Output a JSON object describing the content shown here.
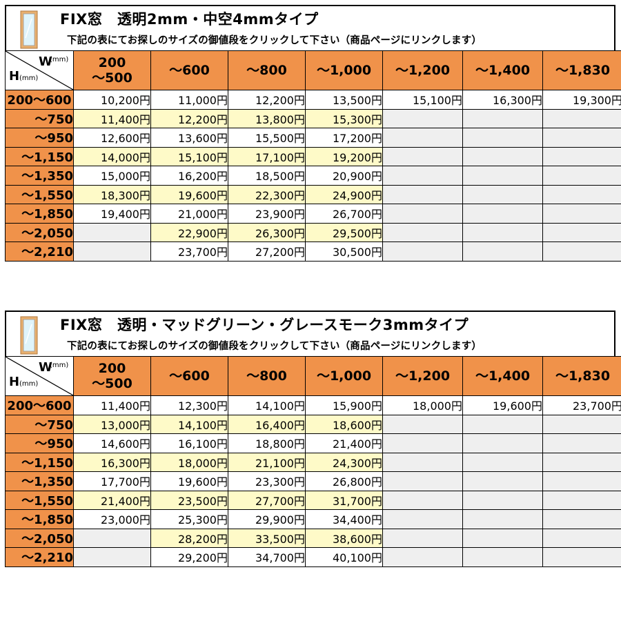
{
  "tables": [
    {
      "title": "FIX窓　透明2mm・中空4mmタイプ",
      "subtitle": "下記の表にてお探しのサイズの御値段をクリックして下さい（商品ページにリンクします）",
      "corner": {
        "w": "W",
        "w_unit": "(mm)",
        "h": "H",
        "h_unit": "(mm)"
      },
      "width_headers": [
        "200\n～500",
        "～600",
        "～800",
        "～1,000",
        "～1,200",
        "～1,400",
        "～1,830"
      ],
      "height_headers": [
        "200～600",
        "～750",
        "～950",
        "～1,150",
        "～1,350",
        "～1,550",
        "～1,850",
        "～2,050",
        "～2,210"
      ],
      "prices": [
        [
          "10,200円",
          "11,000円",
          "12,200円",
          "13,500円",
          "15,100円",
          "16,300円",
          "19,300円"
        ],
        [
          "11,400円",
          "12,200円",
          "13,800円",
          "15,300円",
          "",
          "",
          ""
        ],
        [
          "12,600円",
          "13,600円",
          "15,500円",
          "17,200円",
          "",
          "",
          ""
        ],
        [
          "14,000円",
          "15,100円",
          "17,100円",
          "19,200円",
          "",
          "",
          ""
        ],
        [
          "15,000円",
          "16,200円",
          "18,500円",
          "20,900円",
          "",
          "",
          ""
        ],
        [
          "18,300円",
          "19,600円",
          "22,300円",
          "24,900円",
          "",
          "",
          ""
        ],
        [
          "19,400円",
          "21,000円",
          "23,900円",
          "26,700円",
          "",
          "",
          ""
        ],
        [
          "",
          "22,900円",
          "26,300円",
          "29,500円",
          "",
          "",
          ""
        ],
        [
          "",
          "23,700円",
          "27,200円",
          "30,500円",
          "",
          "",
          ""
        ]
      ]
    },
    {
      "title": "FIX窓　透明・マッドグリーン・グレースモーク3mmタイプ",
      "subtitle": "下記の表にてお探しのサイズの御値段をクリックして下さい（商品ページにリンクします）",
      "corner": {
        "w": "W",
        "w_unit": "(mm)",
        "h": "H",
        "h_unit": "(mm)"
      },
      "width_headers": [
        "200\n～500",
        "～600",
        "～800",
        "～1,000",
        "～1,200",
        "～1,400",
        "～1,830"
      ],
      "height_headers": [
        "200～600",
        "～750",
        "～950",
        "～1,150",
        "～1,350",
        "～1,550",
        "～1,850",
        "～2,050",
        "～2,210"
      ],
      "prices": [
        [
          "11,400円",
          "12,300円",
          "14,100円",
          "15,900円",
          "18,000円",
          "19,600円",
          "23,700円"
        ],
        [
          "13,000円",
          "14,100円",
          "16,400円",
          "18,600円",
          "",
          "",
          ""
        ],
        [
          "14,600円",
          "16,100円",
          "18,800円",
          "21,400円",
          "",
          "",
          ""
        ],
        [
          "16,300円",
          "18,000円",
          "21,100円",
          "24,300円",
          "",
          "",
          ""
        ],
        [
          "17,700円",
          "19,600円",
          "23,300円",
          "26,800円",
          "",
          "",
          ""
        ],
        [
          "21,400円",
          "23,500円",
          "27,700円",
          "31,700円",
          "",
          "",
          ""
        ],
        [
          "23,000円",
          "25,300円",
          "29,900円",
          "34,400円",
          "",
          "",
          ""
        ],
        [
          "",
          "28,200円",
          "33,500円",
          "38,600円",
          "",
          "",
          ""
        ],
        [
          "",
          "29,200円",
          "34,700円",
          "40,100円",
          "",
          "",
          ""
        ]
      ]
    }
  ],
  "colors": {
    "header_orange": "#f0924a",
    "row_cream": "#fefac8",
    "row_white": "#ffffff",
    "empty_gray": "#efefef",
    "frame_wood": "#e8b070",
    "glass": "#dff4fb"
  },
  "icons": {
    "window": "window-frame-icon"
  }
}
